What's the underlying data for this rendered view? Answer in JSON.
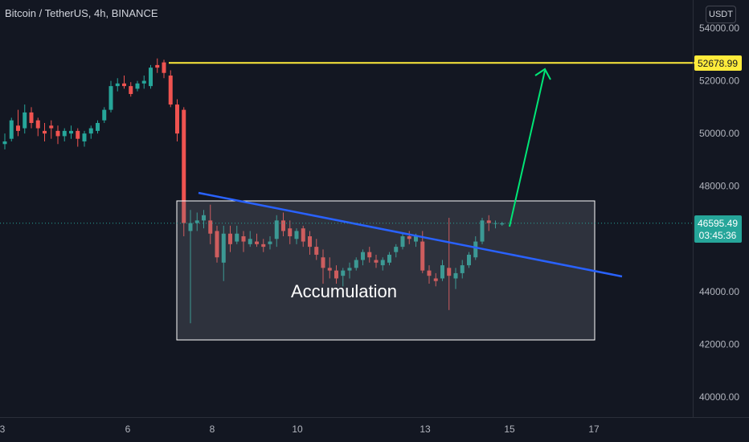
{
  "header": {
    "symbol": "Bitcoin / TetherUS, 4h, BINANCE",
    "currency": "USDT"
  },
  "annotations": {
    "box_label": "Accumulation",
    "resistance_label": "52678.99",
    "last_price_label": "46595.49",
    "countdown_label": "03:45:36"
  },
  "colors": {
    "background": "#131722",
    "up": "#26a69a",
    "down": "#ef5350",
    "resistance": "#ffeb3b",
    "trendline": "#2962ff",
    "arrow": "#00e676",
    "box_border": "#ffffff",
    "axis_text": "#b2b5be"
  },
  "chart_data": {
    "type": "candlestick",
    "title": "Bitcoin / TetherUS, 4h, BINANCE",
    "y_axis": {
      "side": "right",
      "ticks": [
        "54000.00",
        "52000.00",
        "50000.00",
        "48000.00",
        "44000.00",
        "42000.00",
        "40000.00"
      ],
      "range": [
        39000,
        54500
      ]
    },
    "x_axis": {
      "ticks": [
        "3",
        "6",
        "8",
        "10",
        "13",
        "15",
        "17"
      ]
    },
    "grid": false,
    "ohlc": [
      [
        49600,
        50000,
        49400,
        49700
      ],
      [
        49800,
        50600,
        49700,
        50500
      ],
      [
        50300,
        50900,
        49900,
        50100
      ],
      [
        50200,
        51100,
        50000,
        50800
      ],
      [
        50800,
        51000,
        50200,
        50400
      ],
      [
        50500,
        50600,
        49900,
        50200
      ],
      [
        50100,
        50400,
        49700,
        50000
      ],
      [
        50300,
        50500,
        49800,
        50200
      ],
      [
        50100,
        50300,
        49600,
        49900
      ],
      [
        49900,
        50200,
        49700,
        50100
      ],
      [
        50000,
        50300,
        49800,
        50100
      ],
      [
        50100,
        50200,
        49500,
        49800
      ],
      [
        49700,
        50100,
        49500,
        50000
      ],
      [
        50000,
        50300,
        49800,
        50200
      ],
      [
        50100,
        50500,
        50000,
        50400
      ],
      [
        50500,
        51000,
        50400,
        50900
      ],
      [
        50900,
        52000,
        50800,
        51800
      ],
      [
        51800,
        52100,
        51600,
        51900
      ],
      [
        51900,
        52200,
        51700,
        51800
      ],
      [
        51800,
        51950,
        51400,
        51500
      ],
      [
        51700,
        52000,
        51600,
        51900
      ],
      [
        51900,
        52200,
        51700,
        52000
      ],
      [
        51800,
        52600,
        51700,
        52500
      ],
      [
        52600,
        52850,
        52300,
        52500
      ],
      [
        52700,
        52800,
        52100,
        52300
      ],
      [
        52200,
        52400,
        51000,
        51100
      ],
      [
        51100,
        51300,
        49700,
        50000
      ],
      [
        50900,
        51000,
        46100,
        46600
      ],
      [
        46300,
        47100,
        42800,
        46600
      ],
      [
        46600,
        47000,
        46300,
        46700
      ],
      [
        46700,
        47100,
        46400,
        46900
      ],
      [
        46700,
        47300,
        45800,
        46200
      ],
      [
        46300,
        46500,
        45100,
        45300
      ],
      [
        45100,
        46500,
        44400,
        46200
      ],
      [
        46200,
        46500,
        45500,
        45800
      ],
      [
        45900,
        46500,
        45800,
        46200
      ],
      [
        46100,
        46300,
        45500,
        45900
      ],
      [
        45800,
        46300,
        45700,
        46000
      ],
      [
        45900,
        46200,
        45700,
        45800
      ],
      [
        45800,
        46000,
        45500,
        45700
      ],
      [
        45800,
        46100,
        45600,
        45900
      ],
      [
        46000,
        46900,
        45700,
        46700
      ],
      [
        46700,
        47000,
        46100,
        46300
      ],
      [
        46400,
        46700,
        45800,
        46100
      ],
      [
        46000,
        46400,
        45800,
        46300
      ],
      [
        46400,
        46500,
        45700,
        45900
      ],
      [
        46100,
        46300,
        45400,
        45700
      ],
      [
        45700,
        46000,
        45200,
        45400
      ],
      [
        45300,
        45600,
        44300,
        44900
      ],
      [
        44900,
        45300,
        44500,
        44800
      ],
      [
        44800,
        45000,
        44300,
        44500
      ],
      [
        44600,
        44900,
        44200,
        44800
      ],
      [
        44800,
        45100,
        44500,
        44900
      ],
      [
        44900,
        45300,
        44800,
        45200
      ],
      [
        45200,
        45600,
        45000,
        45500
      ],
      [
        45500,
        45700,
        45100,
        45300
      ],
      [
        45200,
        45400,
        44900,
        45100
      ],
      [
        45000,
        45300,
        44800,
        45200
      ],
      [
        45100,
        45500,
        45000,
        45400
      ],
      [
        45500,
        45800,
        45300,
        45700
      ],
      [
        45700,
        46200,
        45600,
        46100
      ],
      [
        46100,
        46300,
        45800,
        46000
      ],
      [
        45900,
        46200,
        45700,
        46100
      ],
      [
        45900,
        46300,
        44700,
        44800
      ],
      [
        44800,
        45000,
        44300,
        44600
      ],
      [
        44500,
        44700,
        44200,
        44400
      ],
      [
        44500,
        45200,
        44400,
        45000
      ],
      [
        44900,
        46800,
        43300,
        44600
      ],
      [
        44500,
        44900,
        44100,
        44700
      ],
      [
        44700,
        45200,
        44500,
        45000
      ],
      [
        45000,
        45500,
        44900,
        45400
      ],
      [
        45300,
        46100,
        45200,
        45900
      ],
      [
        45900,
        46800,
        45800,
        46700
      ],
      [
        46700,
        46900,
        46300,
        46600
      ],
      [
        46600,
        46700,
        46400,
        46600
      ],
      [
        46550,
        46650,
        46500,
        46595
      ]
    ],
    "resistance_level": 52678.99,
    "last_price": 46595.49
  }
}
